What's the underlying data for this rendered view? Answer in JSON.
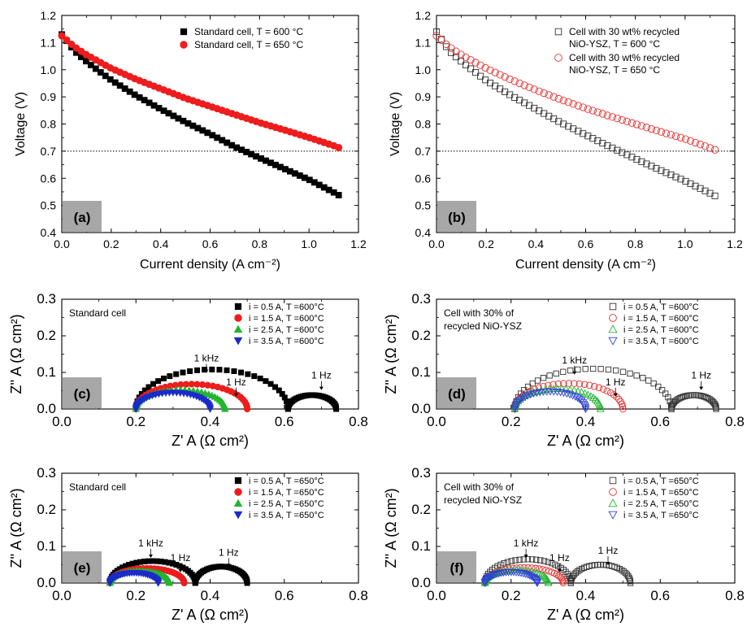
{
  "chart_data": [
    {
      "panel": "(a)",
      "type": "scatter",
      "ylabel": "Voltage (V)",
      "xlabel": "Current density (A cm⁻²)",
      "xlim": [
        0,
        1.2
      ],
      "ylim": [
        0.4,
        1.2
      ],
      "xticks": [
        "0.0",
        "0.2",
        "0.4",
        "0.6",
        "0.8",
        "1.0",
        "1.2"
      ],
      "yticks": [
        "0.4",
        "0.5",
        "0.6",
        "0.7",
        "0.8",
        "0.9",
        "1.0",
        "1.1",
        "1.2"
      ],
      "reference_line": 0.7,
      "legend_placement": "top-right",
      "series": [
        {
          "name": "Standard cell, T = 600 °C",
          "marker": "square",
          "filled": true,
          "color": "#000000",
          "x": [
            0.0,
            0.05,
            0.1,
            0.15,
            0.2,
            0.3,
            0.4,
            0.5,
            0.6,
            0.7,
            0.8,
            0.9,
            1.0,
            1.1,
            1.12
          ],
          "y": [
            1.13,
            1.07,
            1.03,
            0.995,
            0.962,
            0.905,
            0.855,
            0.807,
            0.763,
            0.716,
            0.675,
            0.635,
            0.595,
            0.548,
            0.538
          ]
        },
        {
          "name": "Standard cell, T = 650 °C",
          "marker": "circle",
          "filled": true,
          "color": "#ee1c1c",
          "x": [
            0.0,
            0.05,
            0.1,
            0.15,
            0.2,
            0.3,
            0.4,
            0.5,
            0.6,
            0.7,
            0.8,
            0.9,
            1.0,
            1.1,
            1.12
          ],
          "y": [
            1.125,
            1.085,
            1.055,
            1.03,
            1.005,
            0.965,
            0.93,
            0.895,
            0.865,
            0.835,
            0.805,
            0.778,
            0.75,
            0.72,
            0.713
          ]
        }
      ]
    },
    {
      "panel": "(b)",
      "type": "scatter",
      "ylabel": "Voltage (V)",
      "xlabel": "Current density (A cm⁻²)",
      "xlim": [
        0,
        1.2
      ],
      "ylim": [
        0.4,
        1.2
      ],
      "xticks": [
        "0.0",
        "0.2",
        "0.4",
        "0.6",
        "0.8",
        "1.0",
        "1.2"
      ],
      "yticks": [
        "0.4",
        "0.5",
        "0.6",
        "0.7",
        "0.8",
        "0.9",
        "1.0",
        "1.1",
        "1.2"
      ],
      "reference_line": 0.7,
      "legend_placement": "top-right",
      "series": [
        {
          "name": "Cell with 30 wt% recycled NiO-YSZ, T = 600 °C",
          "marker": "square",
          "filled": false,
          "color": "#333333",
          "x": [
            0.0,
            0.05,
            0.1,
            0.15,
            0.2,
            0.3,
            0.4,
            0.5,
            0.6,
            0.7,
            0.8,
            0.9,
            1.0,
            1.1,
            1.12
          ],
          "y": [
            1.14,
            1.07,
            1.03,
            0.995,
            0.96,
            0.905,
            0.855,
            0.805,
            0.76,
            0.715,
            0.672,
            0.63,
            0.59,
            0.545,
            0.535
          ]
        },
        {
          "name": "Cell with 30 wt% recycled NiO-YSZ, T = 650 °C",
          "marker": "circle",
          "filled": false,
          "color": "#e83030",
          "x": [
            0.0,
            0.05,
            0.1,
            0.15,
            0.2,
            0.3,
            0.4,
            0.5,
            0.6,
            0.7,
            0.8,
            0.9,
            1.0,
            1.1,
            1.12
          ],
          "y": [
            1.125,
            1.085,
            1.055,
            1.03,
            1.005,
            0.963,
            0.925,
            0.89,
            0.858,
            0.828,
            0.8,
            0.772,
            0.745,
            0.712,
            0.705
          ]
        }
      ]
    },
    {
      "panel": "(c)",
      "type": "scatter",
      "ylabel": "Z'' A (Ω cm²)",
      "xlabel": "Z' A (Ω cm²)",
      "xlim": [
        0,
        0.8
      ],
      "ylim": [
        0,
        0.3
      ],
      "xticks": [
        "0.0",
        "0.2",
        "0.4",
        "0.6",
        "0.8"
      ],
      "yticks": [
        "0.0",
        "0.1",
        "0.2",
        "0.3"
      ],
      "inset_label": "Standard cell",
      "legend_placement": "top-right",
      "annotations": [
        {
          "text": "1 kHz",
          "x": 0.39,
          "y": 0.13
        },
        {
          "text": "1 Hz",
          "x": 0.47,
          "y": 0.065
        },
        {
          "text": "1 Hz",
          "x": 0.7,
          "y": 0.083
        }
      ],
      "series": [
        {
          "name": "i = 0.5 A, T =600°C",
          "marker": "square",
          "filled": true,
          "color": "#000000",
          "arcs": [
            {
              "x0": 0.2,
              "x1": 0.61,
              "h": 0.108
            },
            {
              "x0": 0.61,
              "x1": 0.74,
              "h": 0.038
            }
          ]
        },
        {
          "name": "i = 1.5 A, T =600°C",
          "marker": "circle",
          "filled": true,
          "color": "#ee1c1c",
          "arcs": [
            {
              "x0": 0.2,
              "x1": 0.5,
              "h": 0.068
            }
          ]
        },
        {
          "name": "i = 2.5 A, T =600°C",
          "marker": "triangle",
          "filled": true,
          "color": "#22b531",
          "arcs": [
            {
              "x0": 0.2,
              "x1": 0.44,
              "h": 0.052
            }
          ]
        },
        {
          "name": "i = 3.5 A, T =600°C",
          "marker": "triangle-down",
          "filled": true,
          "color": "#1a2bc9",
          "arcs": [
            {
              "x0": 0.2,
              "x1": 0.4,
              "h": 0.045
            }
          ]
        }
      ]
    },
    {
      "panel": "(d)",
      "type": "scatter",
      "ylabel": "Z'' A (Ω cm²)",
      "xlabel": "Z' A (Ω cm²)",
      "xlim": [
        0,
        0.8
      ],
      "ylim": [
        0,
        0.3
      ],
      "xticks": [
        "0.0",
        "0.2",
        "0.4",
        "0.6",
        "0.8"
      ],
      "yticks": [
        "0.0",
        "0.1",
        "0.2",
        "0.3"
      ],
      "inset_label": "Cell with 30% of recycled NiO-YSZ",
      "legend_placement": "top-right",
      "annotations": [
        {
          "text": "1 kHz",
          "x": 0.37,
          "y": 0.125
        },
        {
          "text": "1 Hz",
          "x": 0.48,
          "y": 0.065
        },
        {
          "text": "1 Hz",
          "x": 0.71,
          "y": 0.083
        }
      ],
      "series": [
        {
          "name": "i = 0.5 A, T =600°C",
          "marker": "square",
          "filled": false,
          "color": "#333333",
          "arcs": [
            {
              "x0": 0.21,
              "x1": 0.63,
              "h": 0.11
            },
            {
              "x0": 0.63,
              "x1": 0.75,
              "h": 0.038
            }
          ]
        },
        {
          "name": "i = 1.5 A, T =600°C",
          "marker": "circle",
          "filled": false,
          "color": "#e83030",
          "arcs": [
            {
              "x0": 0.21,
              "x1": 0.5,
              "h": 0.07
            }
          ]
        },
        {
          "name": "i = 2.5 A, T =600°C",
          "marker": "triangle",
          "filled": false,
          "color": "#22b531",
          "arcs": [
            {
              "x0": 0.21,
              "x1": 0.44,
              "h": 0.055
            }
          ]
        },
        {
          "name": "i = 3.5 A, T =600°C",
          "marker": "triangle-down",
          "filled": false,
          "color": "#2c3fd9",
          "arcs": [
            {
              "x0": 0.21,
              "x1": 0.4,
              "h": 0.048
            }
          ]
        }
      ]
    },
    {
      "panel": "(e)",
      "type": "scatter",
      "ylabel": "Z'' A (Ω cm²)",
      "xlabel": "Z' A (Ω cm²)",
      "xlim": [
        0,
        0.8
      ],
      "ylim": [
        0,
        0.3
      ],
      "xticks": [
        "0.0",
        "0.2",
        "0.4",
        "0.6",
        "0.8"
      ],
      "yticks": [
        "0.0",
        "0.1",
        "0.2",
        "0.3"
      ],
      "inset_label": "Standard cell",
      "legend_placement": "top-right",
      "annotations": [
        {
          "text": "1 kHz",
          "x": 0.24,
          "y": 0.1
        },
        {
          "text": "1 Hz",
          "x": 0.32,
          "y": 0.06
        },
        {
          "text": "1 Hz",
          "x": 0.45,
          "y": 0.075
        }
      ],
      "series": [
        {
          "name": "i = 0.5 A, T =650°C",
          "marker": "square",
          "filled": true,
          "color": "#000000",
          "arcs": [
            {
              "x0": 0.13,
              "x1": 0.36,
              "h": 0.06
            },
            {
              "x0": 0.36,
              "x1": 0.5,
              "h": 0.045
            }
          ]
        },
        {
          "name": "i = 1.5 A, T =650°C",
          "marker": "circle",
          "filled": true,
          "color": "#ee1c1c",
          "arcs": [
            {
              "x0": 0.13,
              "x1": 0.33,
              "h": 0.04
            }
          ]
        },
        {
          "name": "i = 2.5 A, T =650°C",
          "marker": "triangle",
          "filled": true,
          "color": "#22b531",
          "arcs": [
            {
              "x0": 0.13,
              "x1": 0.29,
              "h": 0.033
            }
          ]
        },
        {
          "name": "i = 3.5 A, T =650°C",
          "marker": "triangle-down",
          "filled": true,
          "color": "#1a2bc9",
          "arcs": [
            {
              "x0": 0.13,
              "x1": 0.26,
              "h": 0.028
            }
          ]
        }
      ]
    },
    {
      "panel": "(f)",
      "type": "scatter",
      "ylabel": "Z'' A (Ω cm²)",
      "xlabel": "Z' A (Ω cm²)",
      "xlim": [
        0,
        0.8
      ],
      "ylim": [
        0,
        0.3
      ],
      "xticks": [
        "0.0",
        "0.2",
        "0.4",
        "0.6",
        "0.8"
      ],
      "yticks": [
        "0.0",
        "0.1",
        "0.2",
        "0.3"
      ],
      "inset_label": "Cell with 30% of recycled NiO-YSZ",
      "legend_placement": "top-right",
      "annotations": [
        {
          "text": "1 kHz",
          "x": 0.24,
          "y": 0.1
        },
        {
          "text": "1 Hz",
          "x": 0.33,
          "y": 0.06
        },
        {
          "text": "1 Hz",
          "x": 0.46,
          "y": 0.08
        }
      ],
      "series": [
        {
          "name": "i = 0.5 A, T =650°C",
          "marker": "square",
          "filled": false,
          "color": "#333333",
          "arcs": [
            {
              "x0": 0.13,
              "x1": 0.36,
              "h": 0.065
            },
            {
              "x0": 0.36,
              "x1": 0.52,
              "h": 0.05
            }
          ]
        },
        {
          "name": "i = 1.5 A, T =650°C",
          "marker": "circle",
          "filled": false,
          "color": "#e83030",
          "arcs": [
            {
              "x0": 0.13,
              "x1": 0.34,
              "h": 0.042
            }
          ]
        },
        {
          "name": "i = 2.5 A, T =650°C",
          "marker": "triangle",
          "filled": false,
          "color": "#22b531",
          "arcs": [
            {
              "x0": 0.13,
              "x1": 0.3,
              "h": 0.035
            }
          ]
        },
        {
          "name": "i = 3.5 A, T =650°C",
          "marker": "triangle-down",
          "filled": false,
          "color": "#2c3fd9",
          "arcs": [
            {
              "x0": 0.13,
              "x1": 0.27,
              "h": 0.03
            }
          ]
        }
      ]
    }
  ]
}
